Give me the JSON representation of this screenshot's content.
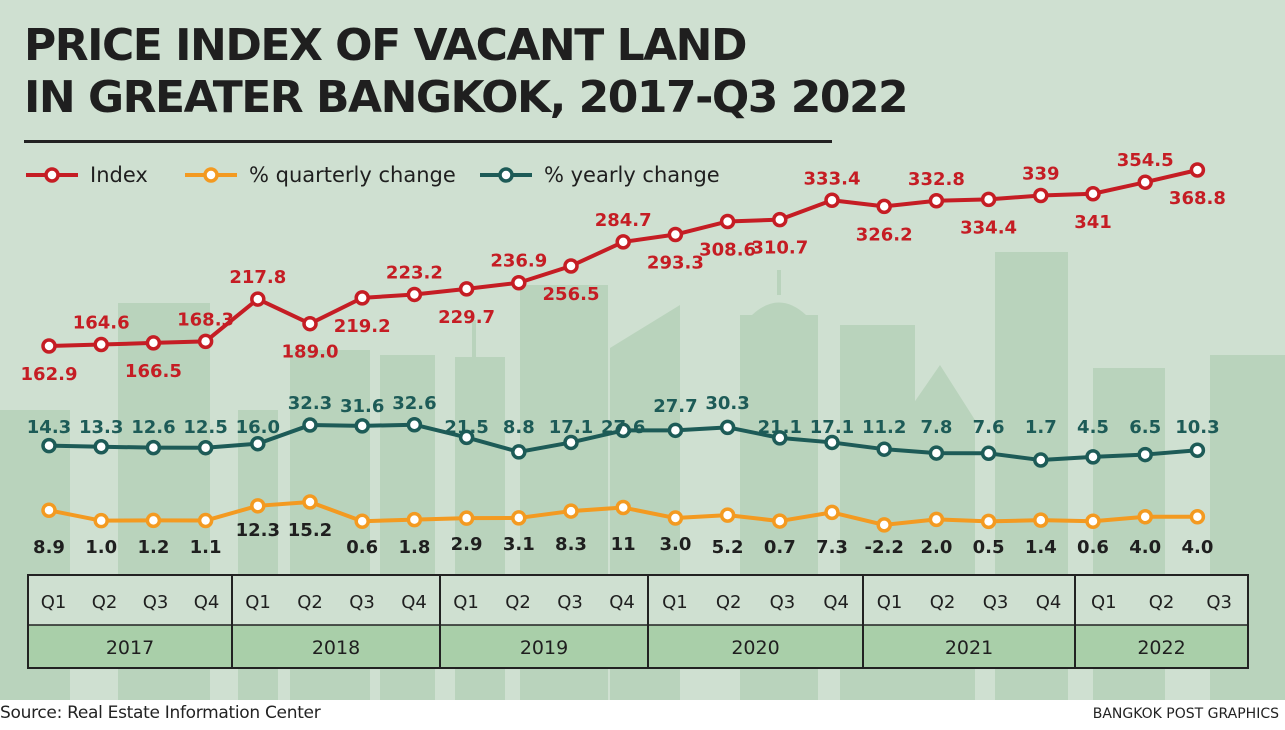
{
  "title_line1": "PRICE INDEX OF VACANT LAND",
  "title_line2": "IN GREATER BANGKOK, 2017-Q3 2022",
  "source": "Source: Real Estate Information Center",
  "credit": "BANGKOK POST GRAPHICS",
  "colors": {
    "background": "#cfe0d1",
    "index": "#c51d24",
    "quarterly": "#f39a21",
    "yearly": "#1d5b57",
    "axis_row": "#a9cfa9"
  },
  "chart_data": {
    "type": "line",
    "title": "PRICE INDEX OF VACANT LAND IN GREATER BANGKOK, 2017-Q3 2022",
    "categories": [
      "Q1",
      "Q2",
      "Q3",
      "Q4",
      "Q1",
      "Q2",
      "Q3",
      "Q4",
      "Q1",
      "Q2",
      "Q3",
      "Q4",
      "Q1",
      "Q2",
      "Q3",
      "Q4",
      "Q1",
      "Q2",
      "Q3",
      "Q4",
      "Q1",
      "Q2",
      "Q3"
    ],
    "years": [
      {
        "label": "2017",
        "quarters": 4
      },
      {
        "label": "2018",
        "quarters": 4
      },
      {
        "label": "2019",
        "quarters": 4
      },
      {
        "label": "2020",
        "quarters": 4
      },
      {
        "label": "2021",
        "quarters": 4
      },
      {
        "label": "2022",
        "quarters": 3
      }
    ],
    "legend_placement": "top-left",
    "grid": false,
    "series": [
      {
        "name": "Index",
        "color": "#c51d24",
        "values": [
          162.9,
          164.6,
          166.5,
          168.3,
          217.8,
          189.0,
          219.2,
          223.2,
          229.7,
          236.9,
          256.5,
          284.7,
          293.3,
          308.6,
          310.7,
          333.4,
          326.2,
          332.8,
          334.4,
          339,
          341,
          354.5,
          368.8
        ],
        "labels": [
          "162.9",
          "164.6",
          "166.5",
          "168.3",
          "217.8",
          "189.0",
          "219.2",
          "223.2",
          "229.7",
          "236.9",
          "256.5",
          "284.7",
          "293.3",
          "308.6",
          "310.7",
          "333.4",
          "326.2",
          "332.8",
          "334.4",
          "339",
          "341",
          "354.5",
          "368.8"
        ]
      },
      {
        "name": "% quarterly change",
        "color": "#f39a21",
        "values": [
          8.9,
          1.0,
          1.2,
          1.1,
          12.3,
          15.2,
          0.6,
          1.8,
          2.9,
          3.1,
          8.3,
          11,
          3.0,
          5.2,
          0.7,
          7.3,
          -2.2,
          2.0,
          0.5,
          1.4,
          0.6,
          4.0,
          4.0
        ],
        "labels": [
          "8.9",
          "1.0",
          "1.2",
          "1.1",
          "12.3",
          "15.2",
          "0.6",
          "1.8",
          "2.9",
          "3.1",
          "8.3",
          "11",
          "3.0",
          "5.2",
          "0.7",
          "7.3",
          "-2.2",
          "2.0",
          "0.5",
          "1.4",
          "0.6",
          "4.0",
          "4.0"
        ]
      },
      {
        "name": "% yearly change",
        "color": "#1d5b57",
        "values": [
          14.3,
          13.3,
          12.6,
          12.5,
          16.0,
          32.3,
          31.6,
          32.6,
          21.5,
          8.8,
          17.1,
          27.6,
          27.7,
          30.3,
          21.1,
          17.1,
          11.2,
          7.8,
          7.6,
          1.7,
          4.5,
          6.5,
          10.3
        ],
        "labels": [
          "14.3",
          "13.3",
          "12.6",
          "12.5",
          "16.0",
          "32.3",
          "31.6",
          "32.6",
          "21.5",
          "8.8",
          "17.1",
          "27.6",
          "27.7",
          "30.3",
          "21.1",
          "17.1",
          "11.2",
          "7.8",
          "7.6",
          "1.7",
          "4.5",
          "6.5",
          "10.3"
        ]
      }
    ]
  }
}
